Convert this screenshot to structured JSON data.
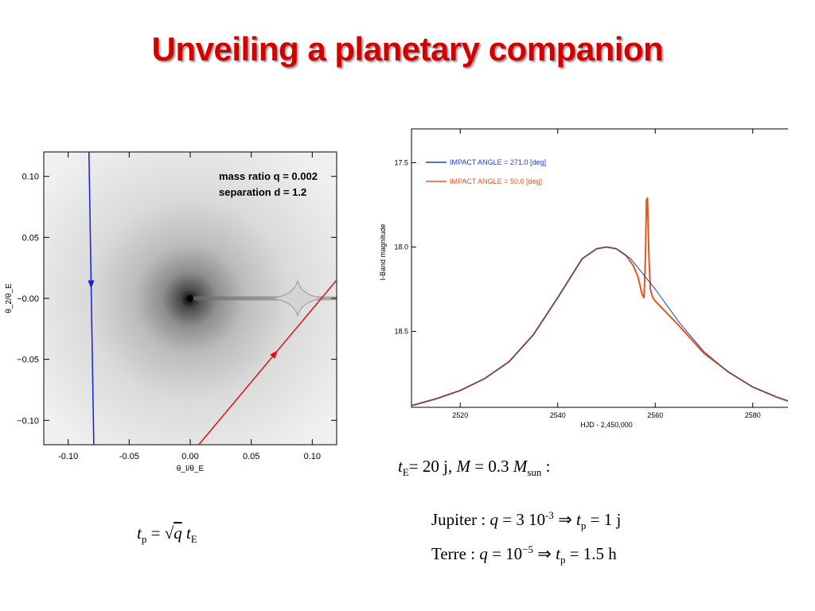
{
  "title": "Unveiling a planetary companion",
  "colors": {
    "title": "#d40000",
    "blue_curve": "#1f3fd0",
    "orange_curve": "#e6561c",
    "red_track": "#e01010",
    "blue_track": "#1020e0"
  },
  "chart_data": [
    {
      "type": "scatter",
      "title": "",
      "xlabel": "θ_I/θ_E",
      "ylabel": "θ_2/θ_E",
      "xlim": [
        -0.12,
        0.12
      ],
      "ylim": [
        -0.12,
        0.12
      ],
      "xticks": [
        "-0.10",
        "-0.05",
        "0.00",
        "0.05",
        "0.10"
      ],
      "yticks": [
        "0.10",
        "0.05",
        "−0.00",
        "−0.05",
        "−0.10"
      ],
      "annotations": [
        "mass ratio q = 0.002",
        "separation d = 1.2"
      ],
      "series": [
        {
          "x": [
            -0.083,
            -0.079
          ],
          "y": [
            0.12,
            -0.12
          ],
          "color": "#1020e0"
        },
        {
          "x": [
            0.007,
            0.12
          ],
          "y": [
            -0.12,
            0.015
          ],
          "color": "#e01010"
        }
      ]
    },
    {
      "type": "line",
      "title": "",
      "xlabel": "HJD - 2,450,000",
      "ylabel": "I-Band  magnitude",
      "xlim": [
        2510,
        2590
      ],
      "ylim": [
        18.95,
        17.3
      ],
      "y_inverted": true,
      "xticks": [
        "2520",
        "2540",
        "2560",
        "2580"
      ],
      "yticks": [
        "17.5",
        "18.0",
        "18.5"
      ],
      "legend_position": "top-left",
      "series": [
        {
          "name": "IMPACT ANGLE = 271.0  [deg]",
          "color": "#1f3fd0",
          "x": [
            2510,
            2515,
            2520,
            2525,
            2530,
            2535,
            2540,
            2545,
            2548,
            2550,
            2552,
            2555,
            2560,
            2565,
            2570,
            2575,
            2580,
            2585,
            2590
          ],
          "y": [
            18.94,
            18.9,
            18.85,
            18.78,
            18.68,
            18.52,
            18.3,
            18.07,
            18.01,
            18.0,
            18.01,
            18.07,
            18.25,
            18.45,
            18.62,
            18.74,
            18.83,
            18.89,
            18.94
          ]
        },
        {
          "name": "IMPACT ANGLE = 50.0  [deg]",
          "color": "#e6561c",
          "x": [
            2510,
            2515,
            2520,
            2525,
            2530,
            2535,
            2540,
            2545,
            2548,
            2550,
            2552,
            2554,
            2555.5,
            2556.5,
            2557.3,
            2557.7,
            2558.0,
            2558.2,
            2558.4,
            2558.7,
            2559.0,
            2559.5,
            2560,
            2565,
            2570,
            2575,
            2580,
            2585,
            2590
          ],
          "y": [
            18.94,
            18.9,
            18.85,
            18.78,
            18.68,
            18.52,
            18.3,
            18.07,
            18.01,
            18.0,
            18.01,
            18.05,
            18.11,
            18.18,
            18.28,
            18.3,
            18.05,
            17.72,
            17.71,
            18.05,
            18.25,
            18.3,
            18.32,
            18.47,
            18.63,
            18.74,
            18.83,
            18.89,
            18.94
          ]
        }
      ]
    }
  ],
  "formulas": {
    "te_line": {
      "t": "t",
      "t_sub": "E",
      "eq1": "=  20 j, ",
      "m": "M",
      "eq2": " =  0.3 ",
      "m2": "M",
      "m2_sub": "sun",
      "tail": "   :"
    },
    "jupiter": {
      "label": "Jupiter :  ",
      "q": "q",
      "eq": " = 3 10",
      "exp": "-3",
      "arrow": " ⇒ ",
      "t": "t",
      "t_sub": "p",
      "val": " = 1 j"
    },
    "terre": {
      "label": "Terre :  ",
      "q": "q",
      "eq": " = 10",
      "exp": "−5",
      "arrow": " ⇒ ",
      "t": "t",
      "t_sub": "p",
      "val": " = 1.5 h"
    },
    "tp": {
      "t": "t",
      "t_sub": "p",
      "eq": " = ",
      "sqrt": "√",
      "q": "q",
      "t2": "t",
      "t2_sub": "E"
    }
  }
}
